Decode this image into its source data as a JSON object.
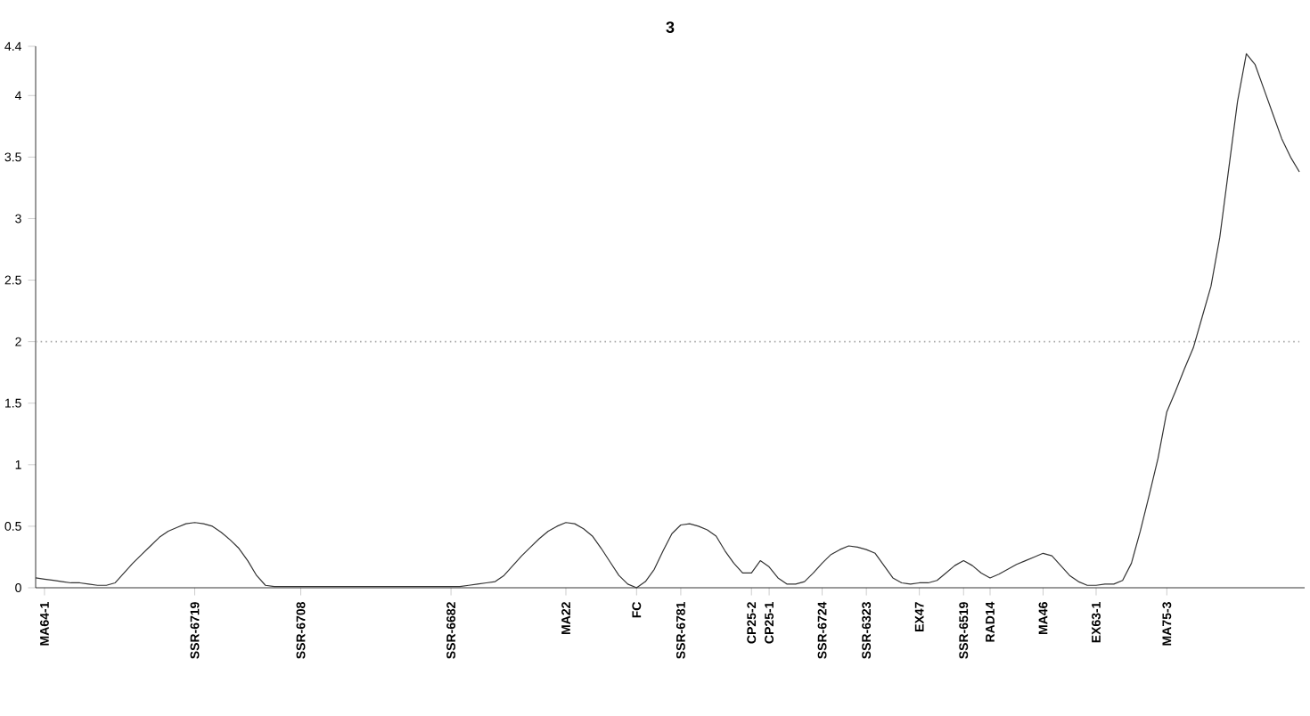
{
  "chart_data": {
    "type": "line",
    "title": "3",
    "categories": [
      null,
      "MA64-1",
      null,
      null,
      null,
      null,
      null,
      null,
      null,
      null,
      null,
      null,
      null,
      null,
      null,
      null,
      null,
      null,
      "SSR-6719",
      null,
      null,
      null,
      null,
      null,
      null,
      null,
      null,
      null,
      null,
      null,
      "SSR-6708",
      null,
      null,
      null,
      null,
      null,
      null,
      null,
      null,
      null,
      null,
      null,
      null,
      null,
      null,
      null,
      null,
      "SSR-6682",
      null,
      null,
      null,
      null,
      null,
      null,
      null,
      null,
      null,
      null,
      null,
      null,
      "MA22",
      null,
      null,
      null,
      null,
      null,
      null,
      null,
      "FC",
      null,
      null,
      null,
      null,
      "SSR-6781",
      null,
      null,
      null,
      null,
      null,
      null,
      null,
      "CP25-2",
      null,
      "CP25-1",
      null,
      null,
      null,
      null,
      null,
      "SSR-6724",
      null,
      null,
      null,
      null,
      "SSR-6323",
      null,
      null,
      null,
      null,
      null,
      "EX47",
      null,
      null,
      null,
      null,
      "SSR-6519",
      null,
      null,
      "RAD14",
      null,
      null,
      null,
      null,
      null,
      "MA46",
      null,
      null,
      null,
      null,
      null,
      "EX63-1",
      null,
      null,
      null,
      null,
      null,
      null,
      null,
      "MA75-3",
      null,
      null,
      null,
      null,
      null,
      null,
      null,
      null,
      null,
      null,
      null,
      null,
      null,
      null,
      null
    ],
    "series": [
      {
        "color": "#333333",
        "values": [
          0.08,
          0.07,
          0.06,
          0.05,
          0.04,
          0.04,
          0.03,
          0.02,
          0.02,
          0.04,
          0.12,
          0.2,
          0.27,
          0.34,
          0.41,
          0.46,
          0.49,
          0.52,
          0.53,
          0.52,
          0.5,
          0.45,
          0.39,
          0.32,
          0.22,
          0.1,
          0.02,
          0.01,
          0.01,
          0.01,
          0.01,
          0.01,
          0.01,
          0.01,
          0.01,
          0.01,
          0.01,
          0.01,
          0.01,
          0.01,
          0.01,
          0.01,
          0.01,
          0.01,
          0.01,
          0.01,
          0.01,
          0.01,
          0.01,
          0.02,
          0.03,
          0.04,
          0.05,
          0.1,
          0.18,
          0.26,
          0.33,
          0.4,
          0.46,
          0.5,
          0.53,
          0.52,
          0.48,
          0.42,
          0.32,
          0.21,
          0.1,
          0.03,
          0,
          0.05,
          0.15,
          0.3,
          0.44,
          0.51,
          0.52,
          0.5,
          0.47,
          0.42,
          0.3,
          0.2,
          0.12,
          0.12,
          0.22,
          0.17,
          0.08,
          0.03,
          0.03,
          0.05,
          0.12,
          0.2,
          0.27,
          0.31,
          0.34,
          0.33,
          0.31,
          0.28,
          0.18,
          0.08,
          0.04,
          0.03,
          0.04,
          0.04,
          0.06,
          0.12,
          0.18,
          0.22,
          0.18,
          0.12,
          0.08,
          0.11,
          0.15,
          0.19,
          0.22,
          0.25,
          0.28,
          0.26,
          0.18,
          0.1,
          0.05,
          0.02,
          0.02,
          0.03,
          0.03,
          0.06,
          0.2,
          0.46,
          0.75,
          1.05,
          1.43,
          1.6,
          1.78,
          1.95,
          2.2,
          2.45,
          2.85,
          3.4,
          3.95,
          4.34,
          4.25,
          4.05,
          3.85,
          3.65,
          3.5,
          3.38
        ]
      }
    ],
    "ylim": [
      0,
      4.4
    ],
    "yticks": [
      0,
      0.5,
      1,
      1.5,
      2,
      2.5,
      3,
      3.5,
      4,
      4.4
    ],
    "ref_lines": [
      {
        "axis": "y",
        "value": 2,
        "color": "#aaaaaa",
        "line_style": "dotted"
      }
    ],
    "grid": false,
    "marker": "none",
    "line_style": "solid"
  }
}
